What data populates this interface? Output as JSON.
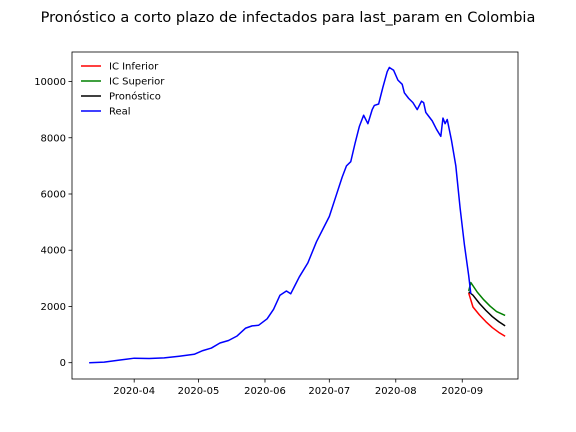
{
  "chart_data": {
    "type": "line",
    "title": "Pronóstico a corto plazo de infectados para last_param en Colombia",
    "xlabel": "",
    "ylabel": "",
    "x_range": [
      "2020-03-03",
      "2020-09-27"
    ],
    "ylim": [
      -580,
      11050
    ],
    "x_ticks": [
      "2020-04-01",
      "2020-05-01",
      "2020-06-01",
      "2020-07-01",
      "2020-08-01",
      "2020-09-01"
    ],
    "x_tick_labels": [
      "2020-04",
      "2020-05",
      "2020-06",
      "2020-07",
      "2020-08",
      "2020-09"
    ],
    "y_ticks": [
      0,
      2000,
      4000,
      6000,
      8000,
      10000
    ],
    "y_tick_labels": [
      "0",
      "2000",
      "4000",
      "6000",
      "8000",
      "10000"
    ],
    "grid": false,
    "legend_position": "top-left",
    "series": [
      {
        "name": "IC Inferior",
        "color": "#ff0000",
        "x": [
          "2020-09-04",
          "2020-09-06",
          "2020-09-09",
          "2020-09-12",
          "2020-09-15",
          "2020-09-18",
          "2020-09-21"
        ],
        "y": [
          2480,
          1980,
          1700,
          1460,
          1250,
          1080,
          940
        ]
      },
      {
        "name": "IC Superior",
        "color": "#008000",
        "x": [
          "2020-09-04",
          "2020-09-05",
          "2020-09-08",
          "2020-09-11",
          "2020-09-14",
          "2020-09-17",
          "2020-09-21"
        ],
        "y": [
          2550,
          2850,
          2510,
          2240,
          2010,
          1820,
          1680
        ]
      },
      {
        "name": "Pronóstico",
        "color": "#000000",
        "x": [
          "2020-09-04",
          "2020-09-06",
          "2020-09-09",
          "2020-09-12",
          "2020-09-15",
          "2020-09-18",
          "2020-09-21"
        ],
        "y": [
          2520,
          2400,
          2110,
          1860,
          1640,
          1460,
          1310
        ]
      },
      {
        "name": "Real",
        "color": "#0000ff",
        "x": [
          "2020-03-11",
          "2020-03-18",
          "2020-03-25",
          "2020-04-01",
          "2020-04-08",
          "2020-04-15",
          "2020-04-22",
          "2020-04-29",
          "2020-05-03",
          "2020-05-07",
          "2020-05-11",
          "2020-05-15",
          "2020-05-19",
          "2020-05-23",
          "2020-05-26",
          "2020-05-29",
          "2020-06-02",
          "2020-06-05",
          "2020-06-08",
          "2020-06-11",
          "2020-06-13",
          "2020-06-15",
          "2020-06-17",
          "2020-06-21",
          "2020-06-25",
          "2020-06-28",
          "2020-07-01",
          "2020-07-04",
          "2020-07-07",
          "2020-07-09",
          "2020-07-11",
          "2020-07-13",
          "2020-07-15",
          "2020-07-17",
          "2020-07-19",
          "2020-07-21",
          "2020-07-22",
          "2020-07-24",
          "2020-07-26",
          "2020-07-28",
          "2020-07-29",
          "2020-07-31",
          "2020-08-02",
          "2020-08-04",
          "2020-08-05",
          "2020-08-07",
          "2020-08-09",
          "2020-08-11",
          "2020-08-13",
          "2020-08-14",
          "2020-08-15",
          "2020-08-16",
          "2020-08-18",
          "2020-08-20",
          "2020-08-22",
          "2020-08-23",
          "2020-08-24",
          "2020-08-25",
          "2020-08-27",
          "2020-08-29",
          "2020-08-31",
          "2020-09-02",
          "2020-09-04",
          "2020-09-05"
        ],
        "y": [
          0,
          20,
          90,
          160,
          150,
          170,
          230,
          300,
          430,
          520,
          700,
          790,
          950,
          1230,
          1310,
          1330,
          1560,
          1900,
          2400,
          2550,
          2450,
          2750,
          3050,
          3550,
          4300,
          4750,
          5200,
          5900,
          6600,
          7000,
          7150,
          7800,
          8400,
          8800,
          8500,
          9000,
          9150,
          9200,
          9800,
          10350,
          10500,
          10400,
          10050,
          9900,
          9600,
          9400,
          9250,
          9000,
          9300,
          9250,
          8900,
          8800,
          8600,
          8300,
          8050,
          8700,
          8500,
          8650,
          7900,
          7000,
          5500,
          4200,
          3100,
          2450
        ]
      }
    ]
  }
}
